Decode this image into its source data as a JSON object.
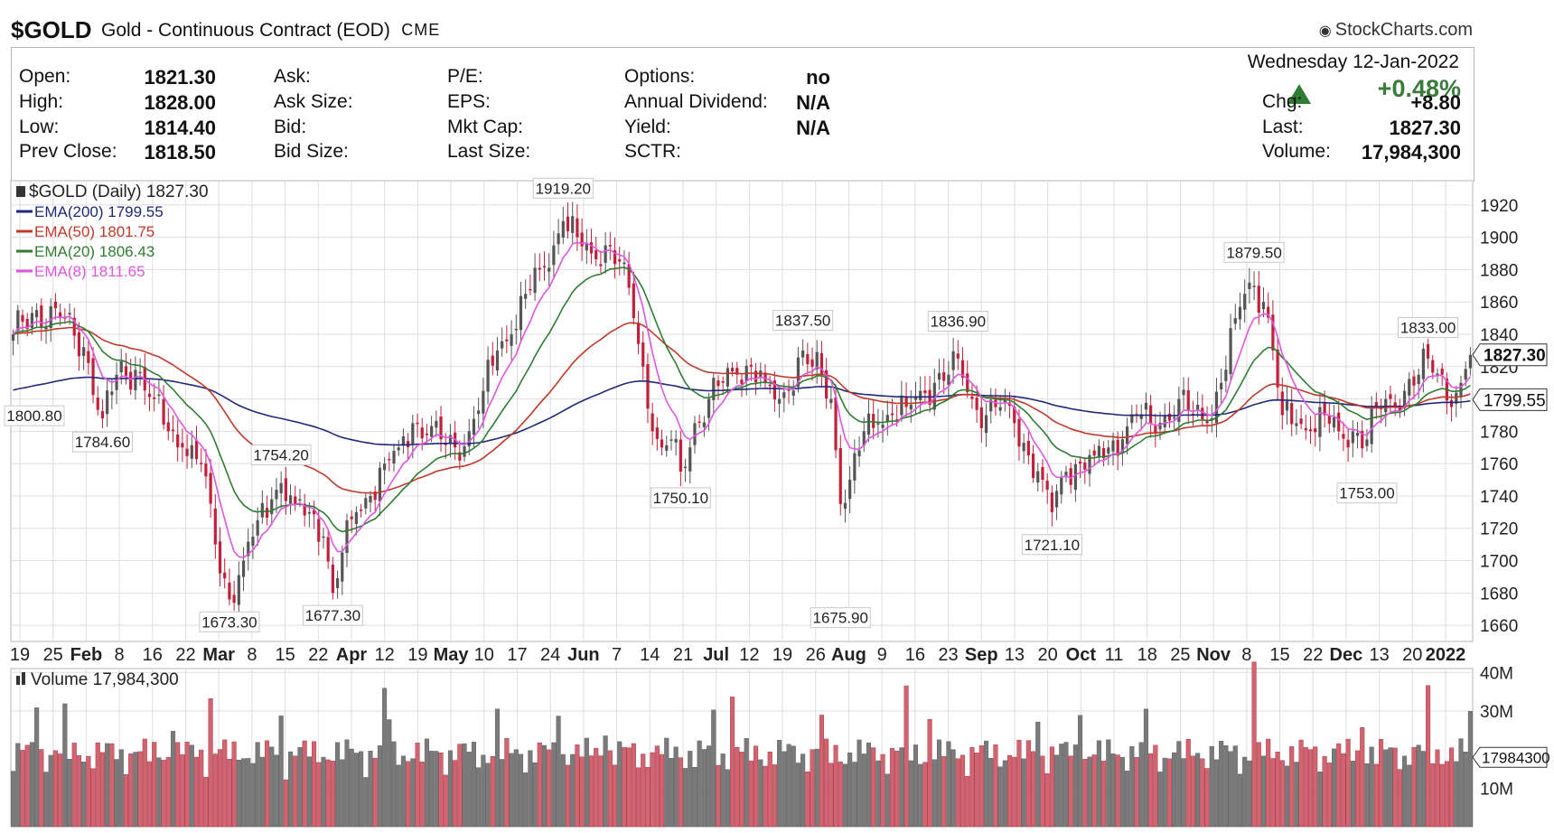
{
  "header": {
    "symbol": "$GOLD",
    "name": "Gold - Continuous Contract (EOD)",
    "exchange": "CME",
    "brand": "StockCharts.com"
  },
  "quote": {
    "left": [
      {
        "label": "Open:",
        "value": "1821.30"
      },
      {
        "label": "High:",
        "value": "1828.00"
      },
      {
        "label": "Low:",
        "value": "1814.40"
      },
      {
        "label": "Prev Close:",
        "value": "1818.50"
      }
    ],
    "col2": [
      "Ask:",
      "Ask Size:",
      "Bid:",
      "Bid Size:"
    ],
    "col3": [
      "P/E:",
      "EPS:",
      "Mkt Cap:",
      "Last Size:"
    ],
    "col4": [
      {
        "label": "Options:",
        "value": "no"
      },
      {
        "label": "Annual Dividend:",
        "value": "N/A"
      },
      {
        "label": "Yield:",
        "value": "N/A"
      },
      {
        "label": "SCTR:",
        "value": ""
      }
    ],
    "date": "Wednesday  12-Jan-2022",
    "pct_change": "+0.48%",
    "right": [
      {
        "label": "Chg:",
        "value": "+8.80"
      },
      {
        "label": "Last:",
        "value": "1827.30"
      },
      {
        "label": "Volume:",
        "value": "17,984,300"
      }
    ]
  },
  "chart_data": {
    "type": "candlestick",
    "legend": [
      {
        "label": "$GOLD (Daily) 1827.30",
        "color": "#222222"
      },
      {
        "label": "EMA(200) 1799.55",
        "color": "#1f2a7a"
      },
      {
        "label": "EMA(50) 1801.75",
        "color": "#c0392b"
      },
      {
        "label": "EMA(20) 1806.43",
        "color": "#2e7d32"
      },
      {
        "label": "EMA(8) 1811.65",
        "color": "#e056e0"
      }
    ],
    "colors": {
      "up": "#555555",
      "down": "#c0203a",
      "ema200": "#1f2a7a",
      "ema50": "#c0392b",
      "ema20": "#2e7d32",
      "ema8": "#e056e0"
    },
    "ylim": [
      1650,
      1935
    ],
    "price_ticks": [
      1660,
      1680,
      1700,
      1720,
      1740,
      1760,
      1780,
      1800,
      1820,
      1840,
      1860,
      1880,
      1900,
      1920
    ],
    "x_labels": [
      {
        "text": "19",
        "bold": false
      },
      {
        "text": "25",
        "bold": false
      },
      {
        "text": "Feb",
        "bold": true
      },
      {
        "text": "8",
        "bold": false
      },
      {
        "text": "16",
        "bold": false
      },
      {
        "text": "22",
        "bold": false
      },
      {
        "text": "Mar",
        "bold": true
      },
      {
        "text": "8",
        "bold": false
      },
      {
        "text": "15",
        "bold": false
      },
      {
        "text": "22",
        "bold": false
      },
      {
        "text": "Apr",
        "bold": true
      },
      {
        "text": "12",
        "bold": false
      },
      {
        "text": "19",
        "bold": false
      },
      {
        "text": "May",
        "bold": true
      },
      {
        "text": "10",
        "bold": false
      },
      {
        "text": "17",
        "bold": false
      },
      {
        "text": "24",
        "bold": false
      },
      {
        "text": "Jun",
        "bold": true
      },
      {
        "text": "7",
        "bold": false
      },
      {
        "text": "14",
        "bold": false
      },
      {
        "text": "21",
        "bold": false
      },
      {
        "text": "Jul",
        "bold": true
      },
      {
        "text": "12",
        "bold": false
      },
      {
        "text": "19",
        "bold": false
      },
      {
        "text": "26",
        "bold": false
      },
      {
        "text": "Aug",
        "bold": true
      },
      {
        "text": "9",
        "bold": false
      },
      {
        "text": "16",
        "bold": false
      },
      {
        "text": "23",
        "bold": false
      },
      {
        "text": "Sep",
        "bold": true
      },
      {
        "text": "13",
        "bold": false
      },
      {
        "text": "20",
        "bold": false
      },
      {
        "text": "Oct",
        "bold": true
      },
      {
        "text": "11",
        "bold": false
      },
      {
        "text": "18",
        "bold": false
      },
      {
        "text": "25",
        "bold": false
      },
      {
        "text": "Nov",
        "bold": true
      },
      {
        "text": "8",
        "bold": false
      },
      {
        "text": "15",
        "bold": false
      },
      {
        "text": "22",
        "bold": false
      },
      {
        "text": "Dec",
        "bold": true
      },
      {
        "text": "13",
        "bold": false
      },
      {
        "text": "20",
        "bold": false
      },
      {
        "text": "2022",
        "bold": true
      }
    ],
    "annotations": [
      {
        "text": "1800.80",
        "i": 0,
        "value": 1800.8,
        "pos": "below"
      },
      {
        "text": "1784.60",
        "i": 19,
        "value": 1784.6,
        "pos": "below"
      },
      {
        "text": "1673.30",
        "i": 46,
        "value": 1673.3,
        "pos": "below"
      },
      {
        "text": "1754.20",
        "i": 57,
        "value": 1754.2,
        "pos": "above"
      },
      {
        "text": "1677.30",
        "i": 68,
        "value": 1677.3,
        "pos": "below"
      },
      {
        "text": "1919.20",
        "i": 117,
        "value": 1919.2,
        "pos": "above"
      },
      {
        "text": "1750.10",
        "i": 142,
        "value": 1750.1,
        "pos": "below"
      },
      {
        "text": "1837.50",
        "i": 168,
        "value": 1837.5,
        "pos": "above"
      },
      {
        "text": "1675.90",
        "i": 176,
        "value": 1675.9,
        "pos": "below"
      },
      {
        "text": "1836.90",
        "i": 201,
        "value": 1836.9,
        "pos": "above"
      },
      {
        "text": "1721.10",
        "i": 221,
        "value": 1721.1,
        "pos": "below"
      },
      {
        "text": "1879.50",
        "i": 264,
        "value": 1879.5,
        "pos": "above"
      },
      {
        "text": "1753.00",
        "i": 288,
        "value": 1753.0,
        "pos": "below"
      },
      {
        "text": "1833.00",
        "i": 301,
        "value": 1833.0,
        "pos": "above"
      }
    ],
    "right_tags": [
      {
        "text": "1827.30",
        "value": 1827.3,
        "primary": true
      },
      {
        "text": "1799.55",
        "value": 1799.55,
        "primary": false
      }
    ],
    "volume": {
      "legend": "Volume 17,984,300",
      "ticks": [
        {
          "value": 10,
          "label": "10M"
        },
        {
          "value": 30,
          "label": "30M"
        },
        {
          "value": 40,
          "label": "40M"
        }
      ],
      "ylim": [
        0,
        41
      ],
      "last_label": "17984300",
      "last_value": 17.98
    },
    "key_points": [
      [
        0,
        1840
      ],
      [
        5,
        1855
      ],
      [
        10,
        1850
      ],
      [
        15,
        1832
      ],
      [
        19,
        1788
      ],
      [
        22,
        1815
      ],
      [
        26,
        1818
      ],
      [
        30,
        1800
      ],
      [
        33,
        1780
      ],
      [
        36,
        1770
      ],
      [
        40,
        1760
      ],
      [
        43,
        1710
      ],
      [
        46,
        1676
      ],
      [
        49,
        1700
      ],
      [
        52,
        1725
      ],
      [
        55,
        1738
      ],
      [
        57,
        1748
      ],
      [
        60,
        1735
      ],
      [
        63,
        1730
      ],
      [
        66,
        1715
      ],
      [
        68,
        1680
      ],
      [
        70,
        1705
      ],
      [
        73,
        1730
      ],
      [
        76,
        1740
      ],
      [
        79,
        1760
      ],
      [
        82,
        1770
      ],
      [
        85,
        1785
      ],
      [
        88,
        1778
      ],
      [
        91,
        1775
      ],
      [
        94,
        1770
      ],
      [
        97,
        1780
      ],
      [
        100,
        1805
      ],
      [
        103,
        1830
      ],
      [
        106,
        1840
      ],
      [
        109,
        1865
      ],
      [
        112,
        1880
      ],
      [
        115,
        1895
      ],
      [
        117,
        1910
      ],
      [
        120,
        1900
      ],
      [
        123,
        1890
      ],
      [
        126,
        1895
      ],
      [
        129,
        1885
      ],
      [
        132,
        1850
      ],
      [
        134,
        1820
      ],
      [
        136,
        1780
      ],
      [
        138,
        1770
      ],
      [
        140,
        1775
      ],
      [
        142,
        1755
      ],
      [
        145,
        1785
      ],
      [
        148,
        1800
      ],
      [
        151,
        1810
      ],
      [
        154,
        1815
      ],
      [
        157,
        1820
      ],
      [
        160,
        1810
      ],
      [
        163,
        1800
      ],
      [
        165,
        1805
      ],
      [
        168,
        1830
      ],
      [
        170,
        1820
      ],
      [
        172,
        1815
      ],
      [
        174,
        1800
      ],
      [
        176,
        1735
      ],
      [
        178,
        1750
      ],
      [
        181,
        1780
      ],
      [
        184,
        1785
      ],
      [
        187,
        1790
      ],
      [
        190,
        1795
      ],
      [
        193,
        1805
      ],
      [
        196,
        1810
      ],
      [
        199,
        1815
      ],
      [
        201,
        1825
      ],
      [
        204,
        1800
      ],
      [
        207,
        1790
      ],
      [
        210,
        1795
      ],
      [
        213,
        1785
      ],
      [
        216,
        1765
      ],
      [
        219,
        1750
      ],
      [
        221,
        1730
      ],
      [
        224,
        1755
      ],
      [
        227,
        1760
      ],
      [
        230,
        1765
      ],
      [
        233,
        1770
      ],
      [
        236,
        1775
      ],
      [
        239,
        1790
      ],
      [
        242,
        1785
      ],
      [
        245,
        1790
      ],
      [
        248,
        1800
      ],
      [
        251,
        1790
      ],
      [
        254,
        1785
      ],
      [
        257,
        1810
      ],
      [
        260,
        1850
      ],
      [
        262,
        1865
      ],
      [
        264,
        1870
      ],
      [
        266,
        1860
      ],
      [
        268,
        1830
      ],
      [
        270,
        1790
      ],
      [
        273,
        1785
      ],
      [
        276,
        1780
      ],
      [
        279,
        1790
      ],
      [
        282,
        1780
      ],
      [
        285,
        1780
      ],
      [
        288,
        1775
      ],
      [
        290,
        1795
      ],
      [
        293,
        1800
      ],
      [
        296,
        1805
      ],
      [
        299,
        1815
      ],
      [
        301,
        1825
      ],
      [
        304,
        1815
      ],
      [
        306,
        1795
      ],
      [
        308,
        1810
      ],
      [
        310,
        1827.3
      ]
    ]
  }
}
